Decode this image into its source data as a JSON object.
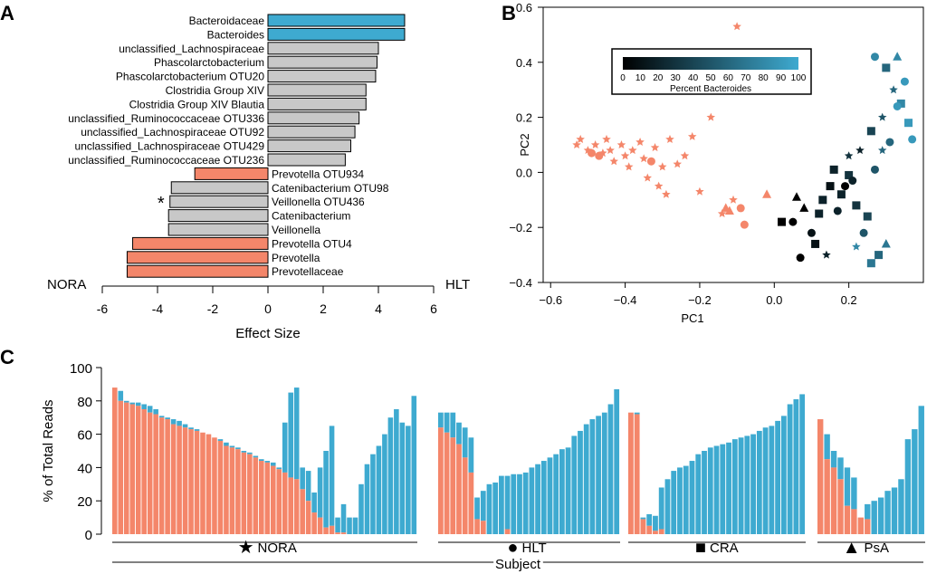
{
  "colors": {
    "prevotella": "#F4866A",
    "bacteroides": "#3EAAD0",
    "neutral": "#C8C8C8",
    "axis": "#000000"
  },
  "panels": {
    "a": "A",
    "b": "B",
    "c": "C"
  },
  "chart_data": [
    {
      "type": "bar",
      "orientation": "horizontal",
      "panel": "A",
      "xlabel": "Effect Size",
      "left_group_label": "NORA",
      "right_group_label": "HLT",
      "xlim": [
        -6,
        6
      ],
      "xticks": [
        -6,
        -4,
        -2,
        0,
        2,
        4,
        6
      ],
      "categories": [
        "Bacteroidaceae",
        "Bacteroides",
        "unclassified_Lachnospiraceae",
        "Phascolarctobacterium",
        "Phascolarctobacterium OTU20",
        "Clostridia Group XIV",
        "Clostridia Group XIV Blautia",
        "unclassified_Ruminococcaceae OTU336",
        "unclassified_Lachnospiraceae OTU92",
        "unclassified_Lachnospiraceae OTU429",
        "unclassified_Ruminococcaceae OTU236",
        "Prevotella OTU934",
        "Catenibacterium OTU98",
        "Veillonella OTU436",
        "Catenibacterium",
        "Veillonella",
        "Prevotella OTU4",
        "Prevotella",
        "Prevotellaceae"
      ],
      "values": [
        4.95,
        4.95,
        4.0,
        3.95,
        3.9,
        3.55,
        3.55,
        3.3,
        3.15,
        3.0,
        2.8,
        -2.65,
        -3.5,
        -3.55,
        -3.6,
        -3.6,
        -4.9,
        -5.1,
        -5.1
      ],
      "color_groups": [
        "bacteroides",
        "bacteroides",
        "neutral",
        "neutral",
        "neutral",
        "neutral",
        "neutral",
        "neutral",
        "neutral",
        "neutral",
        "neutral",
        "prevotella",
        "neutral",
        "neutral",
        "neutral",
        "neutral",
        "prevotella",
        "prevotella",
        "prevotella"
      ],
      "annotations": [
        {
          "category": "Veillonella OTU436",
          "text": "*"
        }
      ]
    },
    {
      "type": "scatter",
      "panel": "B",
      "xlabel": "PC1",
      "ylabel": "PC2",
      "xlim": [
        -0.62,
        0.4
      ],
      "ylim": [
        -0.4,
        0.6
      ],
      "xticks": [
        -0.6,
        -0.4,
        -0.2,
        0.0,
        0.2
      ],
      "yticks": [
        -0.4,
        -0.2,
        0.0,
        0.2,
        0.4,
        0.6
      ],
      "xtick_labels": [
        "−0.6",
        "−0.4",
        "−0.2",
        "0.0",
        "0.2"
      ],
      "ytick_labels": [
        "−0.4",
        "−0.2",
        "0.0",
        "0.2",
        "0.4",
        "0.6"
      ],
      "colorbar": {
        "label": "Percent Bacteroides",
        "ticks": [
          0,
          10,
          20,
          30,
          40,
          50,
          60,
          70,
          80,
          90,
          100
        ],
        "low_color": "#000000",
        "high_color": "#3EAAD0"
      },
      "marker_legend": {
        "star": "NORA",
        "circle": "HLT",
        "square": "CRA",
        "triangle": "PsA"
      },
      "points": [
        {
          "x": -0.53,
          "y": 0.1,
          "shape": "star",
          "pct": 10
        },
        {
          "x": -0.52,
          "y": 0.12,
          "shape": "star",
          "pct": 10
        },
        {
          "x": -0.5,
          "y": 0.08,
          "shape": "star",
          "pct": 10
        },
        {
          "x": -0.49,
          "y": 0.07,
          "shape": "circle",
          "pct": 10
        },
        {
          "x": -0.48,
          "y": 0.1,
          "shape": "star",
          "pct": 10
        },
        {
          "x": -0.47,
          "y": 0.06,
          "shape": "circle",
          "pct": 10
        },
        {
          "x": -0.46,
          "y": 0.07,
          "shape": "star",
          "pct": 10
        },
        {
          "x": -0.45,
          "y": 0.12,
          "shape": "star",
          "pct": 10
        },
        {
          "x": -0.44,
          "y": 0.08,
          "shape": "star",
          "pct": 10
        },
        {
          "x": -0.43,
          "y": 0.04,
          "shape": "star",
          "pct": 10
        },
        {
          "x": -0.41,
          "y": 0.1,
          "shape": "star",
          "pct": 10
        },
        {
          "x": -0.4,
          "y": 0.06,
          "shape": "star",
          "pct": 10
        },
        {
          "x": -0.39,
          "y": 0.02,
          "shape": "star",
          "pct": 10
        },
        {
          "x": -0.38,
          "y": 0.08,
          "shape": "star",
          "pct": 10
        },
        {
          "x": -0.36,
          "y": 0.11,
          "shape": "star",
          "pct": 10
        },
        {
          "x": -0.35,
          "y": 0.05,
          "shape": "star",
          "pct": 10
        },
        {
          "x": -0.34,
          "y": -0.02,
          "shape": "star",
          "pct": 10
        },
        {
          "x": -0.33,
          "y": 0.04,
          "shape": "circle",
          "pct": 10
        },
        {
          "x": -0.32,
          "y": 0.09,
          "shape": "star",
          "pct": 10
        },
        {
          "x": -0.31,
          "y": -0.05,
          "shape": "star",
          "pct": 10
        },
        {
          "x": -0.3,
          "y": 0.02,
          "shape": "star",
          "pct": 10
        },
        {
          "x": -0.29,
          "y": -0.08,
          "shape": "star",
          "pct": 10
        },
        {
          "x": -0.28,
          "y": 0.12,
          "shape": "star",
          "pct": 10
        },
        {
          "x": -0.26,
          "y": 0.03,
          "shape": "star",
          "pct": 10
        },
        {
          "x": -0.24,
          "y": 0.06,
          "shape": "star",
          "pct": 10
        },
        {
          "x": -0.22,
          "y": 0.13,
          "shape": "star",
          "pct": 10
        },
        {
          "x": -0.2,
          "y": -0.07,
          "shape": "star",
          "pct": 10
        },
        {
          "x": -0.17,
          "y": 0.2,
          "shape": "star",
          "pct": 10
        },
        {
          "x": -0.14,
          "y": -0.15,
          "shape": "star",
          "pct": 10
        },
        {
          "x": -0.12,
          "y": -0.14,
          "shape": "triangle",
          "pct": 10
        },
        {
          "x": -0.11,
          "y": -0.1,
          "shape": "star",
          "pct": 10
        },
        {
          "x": -0.1,
          "y": 0.53,
          "shape": "star",
          "pct": 10
        },
        {
          "x": -0.09,
          "y": -0.13,
          "shape": "circle",
          "pct": 10
        },
        {
          "x": -0.02,
          "y": -0.08,
          "shape": "triangle",
          "pct": 10
        },
        {
          "x": -0.13,
          "y": -0.13,
          "shape": "triangle",
          "pct": 0
        },
        {
          "x": -0.08,
          "y": -0.19,
          "shape": "circle",
          "pct": 0
        },
        {
          "x": 0.02,
          "y": -0.18,
          "shape": "square",
          "pct": 0
        },
        {
          "x": 0.05,
          "y": -0.18,
          "shape": "circle",
          "pct": 0
        },
        {
          "x": 0.06,
          "y": -0.09,
          "shape": "triangle",
          "pct": 0
        },
        {
          "x": 0.07,
          "y": -0.31,
          "shape": "circle",
          "pct": 0
        },
        {
          "x": 0.08,
          "y": -0.13,
          "shape": "triangle",
          "pct": 0
        },
        {
          "x": 0.1,
          "y": -0.22,
          "shape": "circle",
          "pct": 10
        },
        {
          "x": 0.11,
          "y": -0.26,
          "shape": "square",
          "pct": 10
        },
        {
          "x": 0.12,
          "y": -0.15,
          "shape": "square",
          "pct": 20
        },
        {
          "x": 0.13,
          "y": -0.1,
          "shape": "square",
          "pct": 20
        },
        {
          "x": 0.14,
          "y": -0.3,
          "shape": "star",
          "pct": 20
        },
        {
          "x": 0.15,
          "y": -0.05,
          "shape": "square",
          "pct": 10
        },
        {
          "x": 0.16,
          "y": 0.01,
          "shape": "square",
          "pct": 20
        },
        {
          "x": 0.17,
          "y": -0.14,
          "shape": "circle",
          "pct": 20
        },
        {
          "x": 0.18,
          "y": -0.08,
          "shape": "square",
          "pct": 20
        },
        {
          "x": 0.19,
          "y": -0.05,
          "shape": "circle",
          "pct": 0
        },
        {
          "x": 0.2,
          "y": -0.01,
          "shape": "square",
          "pct": 30
        },
        {
          "x": 0.2,
          "y": 0.06,
          "shape": "star",
          "pct": 30
        },
        {
          "x": 0.21,
          "y": -0.03,
          "shape": "circle",
          "pct": 20
        },
        {
          "x": 0.22,
          "y": -0.12,
          "shape": "square",
          "pct": 30
        },
        {
          "x": 0.23,
          "y": 0.08,
          "shape": "star",
          "pct": 20
        },
        {
          "x": 0.24,
          "y": -0.22,
          "shape": "circle",
          "pct": 50
        },
        {
          "x": 0.25,
          "y": -0.16,
          "shape": "square",
          "pct": 40
        },
        {
          "x": 0.26,
          "y": 0.15,
          "shape": "square",
          "pct": 40
        },
        {
          "x": 0.27,
          "y": 0.01,
          "shape": "circle",
          "pct": 50
        },
        {
          "x": 0.28,
          "y": -0.3,
          "shape": "square",
          "pct": 60
        },
        {
          "x": 0.29,
          "y": 0.2,
          "shape": "star",
          "pct": 50
        },
        {
          "x": 0.3,
          "y": 0.38,
          "shape": "square",
          "pct": 60
        },
        {
          "x": 0.31,
          "y": 0.11,
          "shape": "circle",
          "pct": 60
        },
        {
          "x": 0.32,
          "y": 0.3,
          "shape": "star",
          "pct": 60
        },
        {
          "x": 0.33,
          "y": 0.42,
          "shape": "triangle",
          "pct": 80
        },
        {
          "x": 0.34,
          "y": 0.25,
          "shape": "square",
          "pct": 80
        },
        {
          "x": 0.35,
          "y": 0.33,
          "shape": "circle",
          "pct": 90
        },
        {
          "x": 0.36,
          "y": 0.18,
          "shape": "square",
          "pct": 90
        },
        {
          "x": 0.37,
          "y": 0.12,
          "shape": "circle",
          "pct": 90
        },
        {
          "x": 0.3,
          "y": -0.26,
          "shape": "triangle",
          "pct": 70
        },
        {
          "x": 0.26,
          "y": -0.33,
          "shape": "square",
          "pct": 70
        },
        {
          "x": 0.22,
          "y": -0.27,
          "shape": "star",
          "pct": 80
        },
        {
          "x": 0.27,
          "y": 0.42,
          "shape": "circle",
          "pct": 80
        },
        {
          "x": 0.33,
          "y": 0.24,
          "shape": "circle",
          "pct": 90
        },
        {
          "x": 0.29,
          "y": 0.08,
          "shape": "star",
          "pct": 60
        }
      ]
    },
    {
      "type": "bar",
      "stacked": true,
      "panel": "C",
      "ylabel": "% of Total Reads",
      "xlabel": "Subject",
      "ylim": [
        0,
        100
      ],
      "yticks": [
        0,
        20,
        40,
        60,
        80,
        100
      ],
      "series_names": [
        "Prevotella",
        "Bacteroides"
      ],
      "groups": [
        {
          "label": "NORA",
          "symbol": "★",
          "prevotella": [
            88,
            80,
            79,
            78,
            77,
            75,
            73,
            72,
            70,
            69,
            66,
            65,
            64,
            63,
            62,
            61,
            60,
            58,
            56,
            53,
            52,
            51,
            49,
            48,
            46,
            44,
            43,
            41,
            39,
            37,
            34,
            33,
            27,
            20,
            13,
            10,
            4,
            5,
            1,
            1,
            0,
            0,
            0,
            0,
            0,
            0,
            0,
            0,
            0,
            0,
            0,
            0
          ],
          "total": [
            88,
            86,
            80,
            79,
            79,
            78,
            77,
            75,
            71,
            70,
            69,
            68,
            66,
            64,
            63,
            61,
            60,
            58,
            57,
            55,
            53,
            52,
            50,
            49,
            47,
            45,
            44,
            43,
            40,
            67,
            85,
            88,
            40,
            38,
            25,
            40,
            50,
            65,
            10,
            18,
            10,
            10,
            30,
            42,
            48,
            53,
            60,
            70,
            75,
            67,
            65,
            83
          ]
        },
        {
          "label": "HLT",
          "symbol": "●",
          "prevotella": [
            64,
            61,
            58,
            54,
            46,
            37,
            9,
            8,
            0,
            0,
            0,
            3,
            0,
            0,
            0,
            0,
            0,
            0,
            0,
            0,
            0,
            0,
            0,
            0,
            0,
            0,
            0,
            0,
            0,
            0
          ],
          "total": [
            73,
            73,
            73,
            67,
            64,
            58,
            22,
            26,
            30,
            31,
            35,
            35,
            36,
            36,
            37,
            40,
            42,
            44,
            46,
            48,
            51,
            52,
            59,
            62,
            66,
            69,
            71,
            73,
            78,
            87
          ]
        },
        {
          "label": "CRA",
          "symbol": "■",
          "prevotella": [
            73,
            72,
            9,
            5,
            2,
            3,
            0,
            0,
            0,
            0,
            0,
            0,
            0,
            0,
            0,
            0,
            0,
            0,
            0,
            0,
            0,
            0,
            0,
            0,
            0,
            0,
            0,
            0,
            0
          ],
          "total": [
            73,
            73,
            10,
            12,
            11,
            28,
            33,
            38,
            40,
            41,
            44,
            48,
            50,
            52,
            53,
            54,
            55,
            57,
            58,
            59,
            60,
            62,
            64,
            65,
            68,
            71,
            78,
            81,
            84
          ]
        },
        {
          "label": "PsA",
          "symbol": "▲",
          "prevotella": [
            69,
            45,
            40,
            33,
            17,
            15,
            10,
            9,
            0,
            0,
            0,
            0,
            0,
            0,
            0,
            0
          ],
          "total": [
            69,
            60,
            50,
            46,
            40,
            34,
            10,
            18,
            20,
            22,
            26,
            28,
            33,
            57,
            63,
            77
          ]
        }
      ]
    }
  ]
}
